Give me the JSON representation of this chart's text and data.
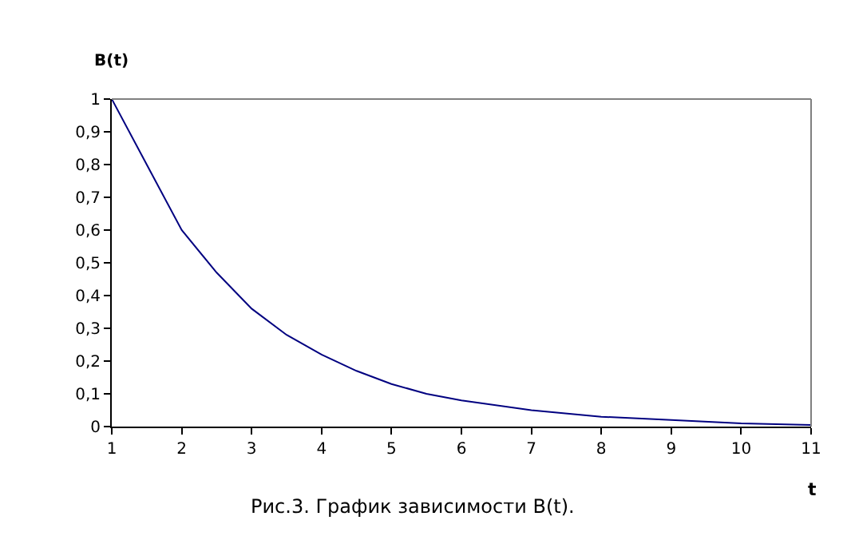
{
  "chart_data": {
    "type": "line",
    "xlabel": "t",
    "ylabel": "B(t)",
    "annotations": [
      "Рис.3. График зависимости B(t)."
    ],
    "x": [
      1,
      1.5,
      2,
      2.5,
      3,
      3.5,
      4,
      4.5,
      5,
      5.5,
      6,
      7,
      8,
      9,
      10,
      11
    ],
    "series": [
      {
        "color": "#000080",
        "values": [
          1,
          0.8,
          0.6,
          0.47,
          0.36,
          0.28,
          0.22,
          0.17,
          0.13,
          0.1,
          0.08,
          0.05,
          0.03,
          0.02,
          0.01,
          0.005
        ]
      }
    ],
    "xlim": [
      1,
      11
    ],
    "xticks": [
      1,
      2,
      3,
      4,
      5,
      6,
      7,
      8,
      9,
      10,
      11
    ],
    "ylim": [
      0,
      1
    ],
    "yticks": [
      {
        "value": 0,
        "label": "0"
      },
      {
        "value": 0.1,
        "label": "0,1"
      },
      {
        "value": 0.2,
        "label": "0,2"
      },
      {
        "value": 0.3,
        "label": "0,3"
      },
      {
        "value": 0.4,
        "label": "0,4"
      },
      {
        "value": 0.5,
        "label": "0,5"
      },
      {
        "value": 0.6,
        "label": "0,6"
      },
      {
        "value": 0.7,
        "label": "0,7"
      },
      {
        "value": 0.8,
        "label": "0,8"
      },
      {
        "value": 0.9,
        "label": "0,9"
      },
      {
        "value": 1,
        "label": "1"
      }
    ],
    "legend": false,
    "marker": "none",
    "line_style": "solid"
  }
}
